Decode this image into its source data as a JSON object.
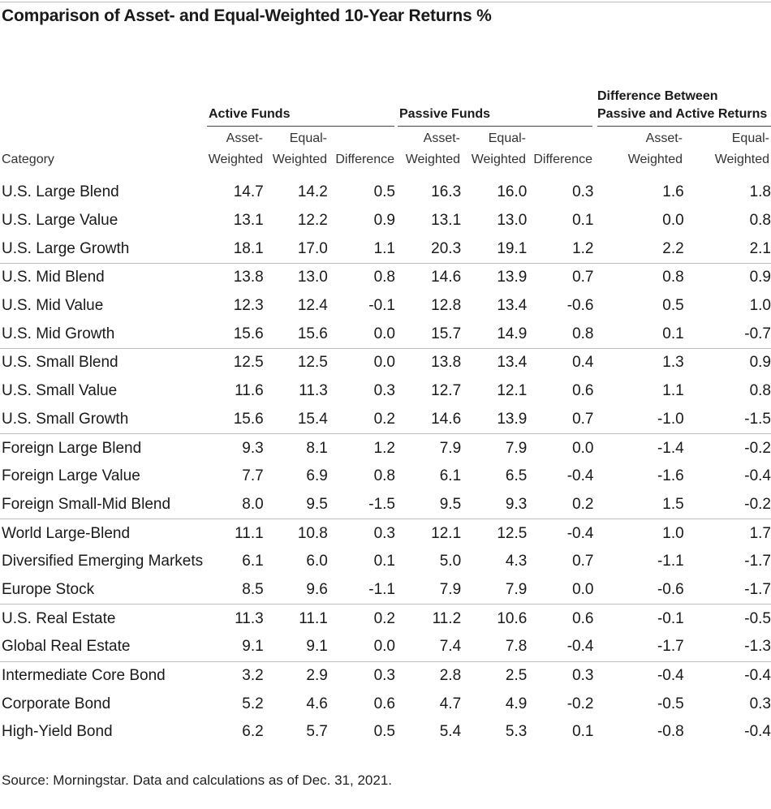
{
  "title": "Comparison of Asset- and Equal-Weighted 10-Year Returns %",
  "group_headers": {
    "active": "Active Funds",
    "passive": "Passive Funds",
    "diff": "Difference Between\nPassive and Active Returns"
  },
  "columns": {
    "category": "Category",
    "asset_weighted": "Asset-\nWeighted",
    "equal_weighted": "Equal-\nWeighted",
    "difference": "Difference"
  },
  "rows": [
    {
      "category": "U.S. Large Blend",
      "a_aw": "14.7",
      "a_ew": "14.2",
      "a_diff": "0.5",
      "p_aw": "16.3",
      "p_ew": "16.0",
      "p_diff": "0.3",
      "d_aw": "1.6",
      "d_ew": "1.8"
    },
    {
      "category": "U.S. Large Value",
      "a_aw": "13.1",
      "a_ew": "12.2",
      "a_diff": "0.9",
      "p_aw": "13.1",
      "p_ew": "13.0",
      "p_diff": "0.1",
      "d_aw": "0.0",
      "d_ew": "0.8"
    },
    {
      "category": "U.S. Large Growth",
      "a_aw": "18.1",
      "a_ew": "17.0",
      "a_diff": "1.1",
      "p_aw": "20.3",
      "p_ew": "19.1",
      "p_diff": "1.2",
      "d_aw": "2.2",
      "d_ew": "2.1"
    },
    {
      "category": "U.S. Mid Blend",
      "a_aw": "13.8",
      "a_ew": "13.0",
      "a_diff": "0.8",
      "p_aw": "14.6",
      "p_ew": "13.9",
      "p_diff": "0.7",
      "d_aw": "0.8",
      "d_ew": "0.9"
    },
    {
      "category": "U.S. Mid Value",
      "a_aw": "12.3",
      "a_ew": "12.4",
      "a_diff": "-0.1",
      "p_aw": "12.8",
      "p_ew": "13.4",
      "p_diff": "-0.6",
      "d_aw": "0.5",
      "d_ew": "1.0"
    },
    {
      "category": "U.S. Mid Growth",
      "a_aw": "15.6",
      "a_ew": "15.6",
      "a_diff": "0.0",
      "p_aw": "15.7",
      "p_ew": "14.9",
      "p_diff": "0.8",
      "d_aw": "0.1",
      "d_ew": "-0.7"
    },
    {
      "category": "U.S. Small Blend",
      "a_aw": "12.5",
      "a_ew": "12.5",
      "a_diff": "0.0",
      "p_aw": "13.8",
      "p_ew": "13.4",
      "p_diff": "0.4",
      "d_aw": "1.3",
      "d_ew": "0.9"
    },
    {
      "category": "U.S. Small Value",
      "a_aw": "11.6",
      "a_ew": "11.3",
      "a_diff": "0.3",
      "p_aw": "12.7",
      "p_ew": "12.1",
      "p_diff": "0.6",
      "d_aw": "1.1",
      "d_ew": "0.8"
    },
    {
      "category": "U.S. Small Growth",
      "a_aw": "15.6",
      "a_ew": "15.4",
      "a_diff": "0.2",
      "p_aw": "14.6",
      "p_ew": "13.9",
      "p_diff": "0.7",
      "d_aw": "-1.0",
      "d_ew": "-1.5"
    },
    {
      "category": "Foreign Large Blend",
      "a_aw": "9.3",
      "a_ew": "8.1",
      "a_diff": "1.2",
      "p_aw": "7.9",
      "p_ew": "7.9",
      "p_diff": "0.0",
      "d_aw": "-1.4",
      "d_ew": "-0.2"
    },
    {
      "category": "Foreign Large Value",
      "a_aw": "7.7",
      "a_ew": "6.9",
      "a_diff": "0.8",
      "p_aw": "6.1",
      "p_ew": "6.5",
      "p_diff": "-0.4",
      "d_aw": "-1.6",
      "d_ew": "-0.4"
    },
    {
      "category": "Foreign Small-Mid Blend",
      "a_aw": "8.0",
      "a_ew": "9.5",
      "a_diff": "-1.5",
      "p_aw": "9.5",
      "p_ew": "9.3",
      "p_diff": "0.2",
      "d_aw": "1.5",
      "d_ew": "-0.2"
    },
    {
      "category": "World Large-Blend",
      "a_aw": "11.1",
      "a_ew": "10.8",
      "a_diff": "0.3",
      "p_aw": "12.1",
      "p_ew": "12.5",
      "p_diff": "-0.4",
      "d_aw": "1.0",
      "d_ew": "1.7"
    },
    {
      "category": "Diversified Emerging Markets",
      "a_aw": "6.1",
      "a_ew": "6.0",
      "a_diff": "0.1",
      "p_aw": "5.0",
      "p_ew": "4.3",
      "p_diff": "0.7",
      "d_aw": "-1.1",
      "d_ew": "-1.7"
    },
    {
      "category": "Europe Stock",
      "a_aw": "8.5",
      "a_ew": "9.6",
      "a_diff": "-1.1",
      "p_aw": "7.9",
      "p_ew": "7.9",
      "p_diff": "0.0",
      "d_aw": "-0.6",
      "d_ew": "-1.7"
    },
    {
      "category": "U.S. Real Estate",
      "a_aw": "11.3",
      "a_ew": "11.1",
      "a_diff": "0.2",
      "p_aw": "11.2",
      "p_ew": "10.6",
      "p_diff": "0.6",
      "d_aw": "-0.1",
      "d_ew": "-0.5"
    },
    {
      "category": "Global Real Estate",
      "a_aw": "9.1",
      "a_ew": "9.1",
      "a_diff": "0.0",
      "p_aw": "7.4",
      "p_ew": "7.8",
      "p_diff": "-0.4",
      "d_aw": "-1.7",
      "d_ew": "-1.3"
    },
    {
      "category": "Intermediate Core Bond",
      "a_aw": "3.2",
      "a_ew": "2.9",
      "a_diff": "0.3",
      "p_aw": "2.8",
      "p_ew": "2.5",
      "p_diff": "0.3",
      "d_aw": "-0.4",
      "d_ew": "-0.4"
    },
    {
      "category": "Corporate Bond",
      "a_aw": "5.2",
      "a_ew": "4.6",
      "a_diff": "0.6",
      "p_aw": "4.7",
      "p_ew": "4.9",
      "p_diff": "-0.2",
      "d_aw": "-0.5",
      "d_ew": "0.3"
    },
    {
      "category": "High-Yield Bond",
      "a_aw": "6.2",
      "a_ew": "5.7",
      "a_diff": "0.5",
      "p_aw": "5.4",
      "p_ew": "5.3",
      "p_diff": "0.1",
      "d_aw": "-0.8",
      "d_ew": "-0.4"
    }
  ],
  "group_starts": [
    3,
    6,
    9,
    12,
    15,
    17
  ],
  "source": "Source: Morningstar. Data and calculations as of Dec. 31, 2021."
}
